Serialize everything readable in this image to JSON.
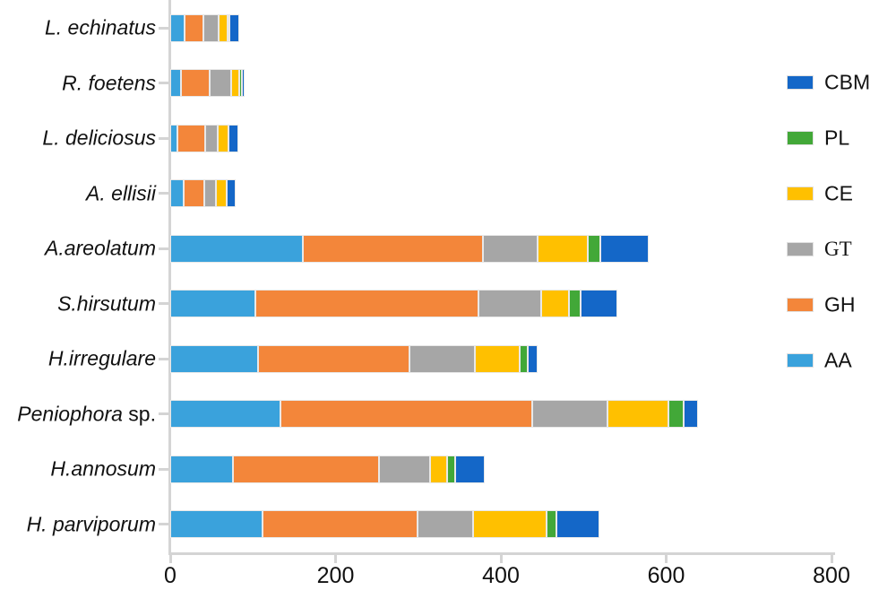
{
  "chart_data": {
    "type": "bar",
    "orientation": "horizontal",
    "stacked": true,
    "title": "",
    "xlabel": "",
    "ylabel": "",
    "xlim": [
      0,
      800
    ],
    "x_ticks": [
      0,
      200,
      400,
      600,
      800
    ],
    "grid": false,
    "legend_position": "right",
    "categories": [
      {
        "italic": "L. echinatus",
        "roman": ""
      },
      {
        "italic": "R. foetens",
        "roman": ""
      },
      {
        "italic": "L. deliciosus",
        "roman": ""
      },
      {
        "italic": "A. ellisii",
        "roman": ""
      },
      {
        "italic": "A.areolatum",
        "roman": ""
      },
      {
        "italic": "S.hirsutum",
        "roman": ""
      },
      {
        "italic": "H.irregulare",
        "roman": ""
      },
      {
        "italic": "Peniophora",
        "roman": " sp."
      },
      {
        "italic": "H.annosum",
        "roman": ""
      },
      {
        "italic": "H. parviporum",
        "roman": ""
      }
    ],
    "series": [
      {
        "name": "AA",
        "color": "#3aa2dc",
        "values": [
          17,
          13,
          9,
          16,
          160,
          103,
          106,
          133,
          76,
          112
        ]
      },
      {
        "name": "GH",
        "color": "#f3863a",
        "values": [
          23,
          35,
          33,
          25,
          218,
          270,
          183,
          305,
          177,
          187
        ]
      },
      {
        "name": "GT",
        "color": "#a6a6a6",
        "values": [
          19,
          26,
          15,
          14,
          66,
          76,
          80,
          91,
          61,
          67
        ]
      },
      {
        "name": "CE",
        "color": "#ffc000",
        "values": [
          10,
          10,
          13,
          13,
          61,
          33,
          54,
          74,
          21,
          89
        ]
      },
      {
        "name": "PL",
        "color": "#42a838",
        "values": [
          2,
          3,
          0,
          0,
          15,
          14,
          10,
          18,
          10,
          12
        ]
      },
      {
        "name": "CBM",
        "color": "#1467c8",
        "values": [
          12,
          3,
          12,
          11,
          59,
          45,
          11,
          17,
          36,
          52
        ]
      }
    ],
    "totals": [
      83,
      90,
      82,
      79,
      579,
      541,
      444,
      638,
      381,
      519
    ],
    "legend_order": [
      "CBM",
      "PL",
      "CE",
      "GT",
      "GH",
      "AA"
    ]
  },
  "axis_color": "#d4d4d4"
}
